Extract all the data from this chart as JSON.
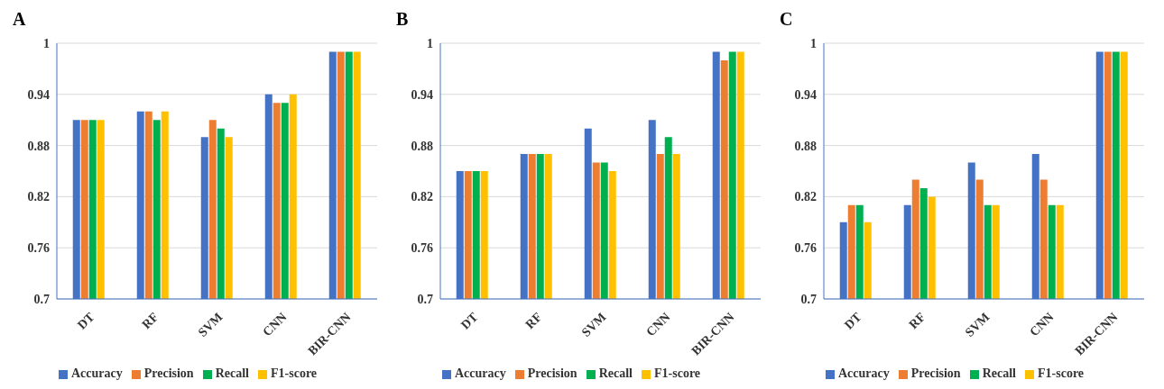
{
  "chart_data": [
    {
      "type": "bar",
      "title": "A",
      "categories": [
        "DT",
        "RF",
        "SVM",
        "CNN",
        "BIR-CNN"
      ],
      "series": [
        {
          "name": "Accuracy",
          "color": "#4472c4",
          "values": [
            0.91,
            0.92,
            0.89,
            0.94,
            0.99
          ]
        },
        {
          "name": "Precision",
          "color": "#ed7d31",
          "values": [
            0.91,
            0.92,
            0.91,
            0.93,
            0.99
          ]
        },
        {
          "name": "Recall",
          "color": "#00b050",
          "values": [
            0.91,
            0.91,
            0.9,
            0.93,
            0.99
          ]
        },
        {
          "name": "F1-score",
          "color": "#ffc000",
          "values": [
            0.91,
            0.92,
            0.89,
            0.94,
            0.99
          ]
        }
      ],
      "ylim": [
        0.7,
        1
      ],
      "yticks": [
        0.7,
        0.76,
        0.82,
        0.88,
        0.94,
        1
      ],
      "grid": "y",
      "legend": "bottom"
    },
    {
      "type": "bar",
      "title": "B",
      "categories": [
        "DT",
        "RF",
        "SVM",
        "CNN",
        "BIR-CNN"
      ],
      "series": [
        {
          "name": "Accuracy",
          "color": "#4472c4",
          "values": [
            0.85,
            0.87,
            0.9,
            0.91,
            0.99
          ]
        },
        {
          "name": "Precision",
          "color": "#ed7d31",
          "values": [
            0.85,
            0.87,
            0.86,
            0.87,
            0.98
          ]
        },
        {
          "name": "Recall",
          "color": "#00b050",
          "values": [
            0.85,
            0.87,
            0.86,
            0.89,
            0.99
          ]
        },
        {
          "name": "F1-score",
          "color": "#ffc000",
          "values": [
            0.85,
            0.87,
            0.85,
            0.87,
            0.99
          ]
        }
      ],
      "ylim": [
        0.7,
        1
      ],
      "yticks": [
        0.7,
        0.76,
        0.82,
        0.88,
        0.94,
        1
      ],
      "grid": "y",
      "legend": "bottom"
    },
    {
      "type": "bar",
      "title": "C",
      "categories": [
        "DT",
        "RF",
        "SVM",
        "CNN",
        "BIR-CNN"
      ],
      "series": [
        {
          "name": "Accuracy",
          "color": "#4472c4",
          "values": [
            0.79,
            0.81,
            0.86,
            0.87,
            0.99
          ]
        },
        {
          "name": "Precision",
          "color": "#ed7d31",
          "values": [
            0.81,
            0.84,
            0.84,
            0.84,
            0.99
          ]
        },
        {
          "name": "Recall",
          "color": "#00b050",
          "values": [
            0.81,
            0.83,
            0.81,
            0.81,
            0.99
          ]
        },
        {
          "name": "F1-score",
          "color": "#ffc000",
          "values": [
            0.79,
            0.82,
            0.81,
            0.81,
            0.99
          ]
        }
      ],
      "ylim": [
        0.7,
        1
      ],
      "yticks": [
        0.7,
        0.76,
        0.82,
        0.88,
        0.94,
        1
      ],
      "grid": "y",
      "legend": "bottom"
    }
  ]
}
